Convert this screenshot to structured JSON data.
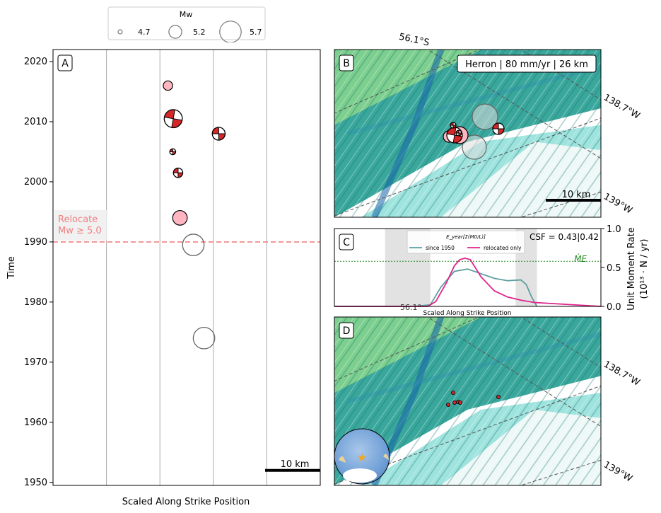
{
  "legend": {
    "title": "Mw",
    "items": [
      {
        "label": "4.7",
        "mw": 4.7
      },
      {
        "label": "5.2",
        "mw": 5.2
      },
      {
        "label": "5.7",
        "mw": 5.7
      }
    ]
  },
  "panel_a": {
    "letter": "A",
    "ylabel": "Time",
    "xlabel": "Scaled Along Strike Position",
    "relocate_line1": "Relocate",
    "relocate_line2": "Mw ≥ 5.0",
    "scalebar": "10 km"
  },
  "panel_b": {
    "letter": "B",
    "info": "Herron | 80 mm/yr | 26 km",
    "lat_label": "56.1°S",
    "lon_label_1": "138.7°W",
    "lon_label_2": "139°W",
    "scalebar": "10 km"
  },
  "panel_c": {
    "letter": "C",
    "csf": "CSF = 0.43|0.42",
    "me_label": "ṀE",
    "legend_title": "E_year[Σ(M0/L)]",
    "xlabel": "Scaled Along Strike Position",
    "ylabel_line1": "Unit Moment Rate",
    "ylabel_line2": "(10¹³ · N / yr)",
    "overlap_label": "56.1°"
  },
  "panel_d": {
    "letter": "D",
    "lon_label_1": "138.7°W",
    "lon_label_2": "139°W"
  },
  "colors": {
    "relocate": "#f08080",
    "beachball_red": "#d62728",
    "event_pink": "#ffb6c1",
    "since1950": "#5f9ea0",
    "relocated": "#e0238c",
    "me_line": "#228b22",
    "shade": "#e2e2e2"
  },
  "chart_data": [
    {
      "type": "scatter",
      "panel": "A",
      "title": "",
      "xlabel": "Scaled Along Strike Position",
      "ylabel": "Time",
      "xlim": [
        0,
        1
      ],
      "ylim": [
        1949.5,
        2022
      ],
      "yticks": [
        1950,
        1960,
        1970,
        1980,
        1990,
        2000,
        2010,
        2020
      ],
      "grid": "vertical lines at x = 0.2, 0.4, 0.6, 0.8",
      "relocate_threshold_year": 1990,
      "events": [
        {
          "x": 0.43,
          "y": 2016,
          "mw": 5.0,
          "kind": "relocated"
        },
        {
          "x": 0.45,
          "y": 2010.5,
          "mw": 5.5,
          "kind": "mechanism"
        },
        {
          "x": 0.62,
          "y": 2008,
          "mw": 5.2,
          "kind": "mechanism"
        },
        {
          "x": 0.448,
          "y": 2005,
          "mw": 4.8,
          "kind": "mechanism"
        },
        {
          "x": 0.468,
          "y": 2001.5,
          "mw": 5.0,
          "kind": "mechanism"
        },
        {
          "x": 0.475,
          "y": 1994,
          "mw": 5.3,
          "kind": "relocated"
        },
        {
          "x": 0.525,
          "y": 1989.5,
          "mw": 5.7,
          "kind": "unrelocated"
        },
        {
          "x": 0.565,
          "y": 1974,
          "mw": 5.7,
          "kind": "unrelocated"
        }
      ]
    },
    {
      "type": "line",
      "panel": "C",
      "xlabel": "Scaled Along Strike Position",
      "ylabel": "Unit Moment Rate (10^13 · N / yr)",
      "xlim": [
        0,
        1
      ],
      "ylim": [
        0,
        1.0
      ],
      "yticks": [
        0.0,
        0.5,
        1.0
      ],
      "me_level": 0.58,
      "shaded_x_ranges": [
        [
          0.19,
          0.36
        ],
        [
          0.68,
          0.76
        ]
      ],
      "legend_placement": "top-center",
      "series": [
        {
          "name": "since 1950",
          "x": [
            0,
            0.3,
            0.36,
            0.4,
            0.45,
            0.5,
            0.55,
            0.6,
            0.65,
            0.7,
            0.72,
            0.74,
            0.76
          ],
          "y": [
            0,
            0,
            0.02,
            0.25,
            0.45,
            0.48,
            0.42,
            0.36,
            0.33,
            0.34,
            0.28,
            0.12,
            0.0
          ]
        },
        {
          "name": "relocated only",
          "x": [
            0,
            0.35,
            0.38,
            0.42,
            0.45,
            0.47,
            0.49,
            0.51,
            0.55,
            0.6,
            0.65,
            0.7,
            0.75,
            1.0
          ],
          "y": [
            0,
            0,
            0.06,
            0.3,
            0.52,
            0.6,
            0.62,
            0.6,
            0.38,
            0.2,
            0.12,
            0.08,
            0.05,
            0.0
          ]
        }
      ]
    }
  ]
}
